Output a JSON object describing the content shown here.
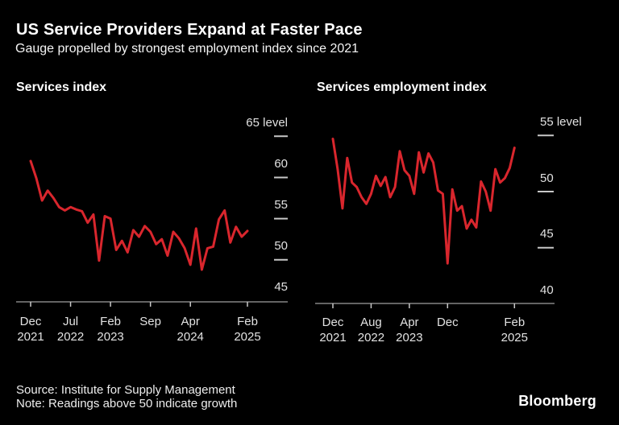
{
  "header": {
    "title": "US Service Providers Expand at Faster Pace",
    "subtitle": "Gauge propelled by strongest employment index since 2021"
  },
  "footer": {
    "source": "Source: Institute for Supply Management",
    "note": "Note: Readings above 50 indicate growth",
    "logo": "Bloomberg"
  },
  "colors": {
    "background": "#000000",
    "line": "#d9262d",
    "axis": "#c8c8c8",
    "axis_text": "#e2e2e2",
    "text": "#ffffff"
  },
  "chart_data": [
    {
      "type": "line",
      "title": "Services index",
      "slug": "services-index",
      "unit_suffix": "level",
      "ylabel": "level",
      "ylim": [
        45,
        65
      ],
      "y_ticks": [
        65,
        60,
        55,
        50,
        45
      ],
      "grid": false,
      "legend": "none",
      "x_range": [
        "2021-12",
        "2025-02"
      ],
      "x_tick_labels": [
        {
          "month": "Dec",
          "year": "2021",
          "index": 0
        },
        {
          "month": "Jul",
          "year": "2022",
          "index": 7
        },
        {
          "month": "Feb",
          "year": "2023",
          "index": 14
        },
        {
          "month": "Sep",
          "year": "",
          "index": 21
        },
        {
          "month": "Apr",
          "year": "2024",
          "index": 28
        },
        {
          "month": "Feb",
          "year": "2025",
          "index": 38
        }
      ],
      "categories": [
        "2021-12",
        "2022-01",
        "2022-02",
        "2022-03",
        "2022-04",
        "2022-05",
        "2022-06",
        "2022-07",
        "2022-08",
        "2022-09",
        "2022-10",
        "2022-11",
        "2022-12",
        "2023-01",
        "2023-02",
        "2023-03",
        "2023-04",
        "2023-05",
        "2023-06",
        "2023-07",
        "2023-08",
        "2023-09",
        "2023-10",
        "2023-11",
        "2023-12",
        "2024-01",
        "2024-02",
        "2024-03",
        "2024-04",
        "2024-05",
        "2024-06",
        "2024-07",
        "2024-08",
        "2024-09",
        "2024-10",
        "2024-11",
        "2024-12",
        "2025-01",
        "2025-02"
      ],
      "values": [
        62.0,
        59.9,
        57.2,
        58.4,
        57.5,
        56.4,
        56.0,
        56.4,
        56.1,
        55.9,
        54.5,
        55.5,
        49.9,
        55.3,
        55.0,
        51.2,
        52.3,
        50.9,
        53.6,
        52.8,
        54.1,
        53.4,
        51.9,
        52.5,
        50.5,
        53.4,
        52.6,
        51.4,
        49.4,
        53.8,
        48.8,
        51.4,
        51.6,
        54.9,
        56.0,
        52.1,
        54.0,
        52.8,
        53.5
      ]
    },
    {
      "type": "line",
      "title": "Services employment index",
      "slug": "services-employment-index",
      "unit_suffix": "level",
      "ylabel": "level",
      "ylim": [
        40,
        55
      ],
      "y_ticks": [
        55,
        50,
        45,
        40
      ],
      "grid": false,
      "legend": "none",
      "x_range": [
        "2021-12",
        "2025-02"
      ],
      "x_tick_labels": [
        {
          "month": "Dec",
          "year": "2021",
          "index": 0
        },
        {
          "month": "Aug",
          "year": "2022",
          "index": 8
        },
        {
          "month": "Apr",
          "year": "2023",
          "index": 16
        },
        {
          "month": "Dec",
          "year": "",
          "index": 24
        },
        {
          "month": "Feb",
          "year": "2025",
          "index": 38
        }
      ],
      "categories": [
        "2021-12",
        "2022-01",
        "2022-02",
        "2022-03",
        "2022-04",
        "2022-05",
        "2022-06",
        "2022-07",
        "2022-08",
        "2022-09",
        "2022-10",
        "2022-11",
        "2022-12",
        "2023-01",
        "2023-02",
        "2023-03",
        "2023-04",
        "2023-05",
        "2023-06",
        "2023-07",
        "2023-08",
        "2023-09",
        "2023-10",
        "2023-11",
        "2023-12",
        "2024-01",
        "2024-02",
        "2024-03",
        "2024-04",
        "2024-05",
        "2024-06",
        "2024-07",
        "2024-08",
        "2024-09",
        "2024-10",
        "2024-11",
        "2024-12",
        "2025-01",
        "2025-02"
      ],
      "values": [
        54.7,
        52.0,
        48.5,
        53.0,
        50.8,
        50.4,
        49.5,
        48.9,
        49.8,
        51.4,
        50.5,
        51.3,
        49.5,
        50.4,
        53.6,
        51.9,
        51.4,
        49.8,
        53.5,
        51.7,
        53.4,
        52.6,
        50.1,
        49.8,
        43.6,
        50.2,
        48.3,
        48.7,
        46.7,
        47.5,
        46.8,
        50.9,
        50.0,
        48.3,
        52.0,
        50.8,
        51.2,
        52.1,
        53.9
      ]
    }
  ]
}
